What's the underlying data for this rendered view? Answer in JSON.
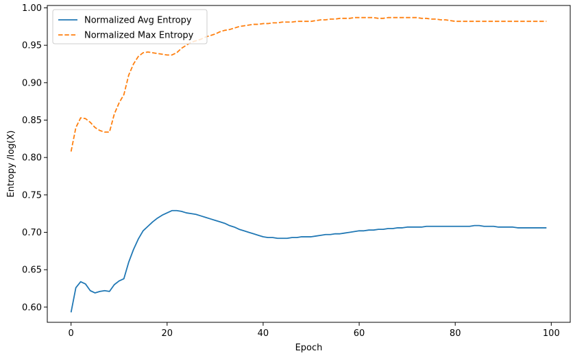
{
  "chart_data": {
    "type": "line",
    "title": "",
    "xlabel": "Epoch",
    "ylabel": "Entropy /log(X)",
    "xlim": [
      -4.95,
      103.95
    ],
    "ylim": [
      0.5797,
      1.0032
    ],
    "xticks": [
      0,
      20,
      40,
      60,
      80,
      100
    ],
    "yticks": [
      0.6,
      0.65,
      0.7,
      0.75,
      0.8,
      0.85,
      0.9,
      0.95,
      1.0
    ],
    "xtick_labels": [
      "0",
      "20",
      "40",
      "60",
      "80",
      "100"
    ],
    "ytick_labels": [
      "0.60",
      "0.65",
      "0.70",
      "0.75",
      "0.80",
      "0.85",
      "0.90",
      "0.95",
      "1.00"
    ],
    "grid": false,
    "legend_position": "upper-left",
    "series": [
      {
        "name": "Normalized Avg Entropy",
        "color": "#1f77b4",
        "dash": "solid",
        "x": [
          0,
          1,
          2,
          3,
          4,
          5,
          6,
          7,
          8,
          9,
          10,
          11,
          12,
          13,
          14,
          15,
          16,
          17,
          18,
          19,
          20,
          21,
          22,
          23,
          24,
          25,
          26,
          27,
          28,
          29,
          30,
          31,
          32,
          33,
          34,
          35,
          36,
          37,
          38,
          39,
          40,
          41,
          42,
          43,
          44,
          45,
          46,
          47,
          48,
          49,
          50,
          51,
          52,
          53,
          54,
          55,
          56,
          57,
          58,
          59,
          60,
          61,
          62,
          63,
          64,
          65,
          66,
          67,
          68,
          69,
          70,
          71,
          72,
          73,
          74,
          75,
          76,
          77,
          78,
          79,
          80,
          81,
          82,
          83,
          84,
          85,
          86,
          87,
          88,
          89,
          90,
          91,
          92,
          93,
          94,
          95,
          96,
          97,
          98,
          99
        ],
        "y": [
          0.593,
          0.626,
          0.634,
          0.631,
          0.622,
          0.619,
          0.621,
          0.622,
          0.621,
          0.63,
          0.635,
          0.638,
          0.66,
          0.677,
          0.691,
          0.702,
          0.708,
          0.714,
          0.719,
          0.723,
          0.726,
          0.729,
          0.729,
          0.728,
          0.726,
          0.725,
          0.724,
          0.722,
          0.72,
          0.718,
          0.716,
          0.714,
          0.712,
          0.709,
          0.707,
          0.704,
          0.702,
          0.7,
          0.698,
          0.696,
          0.694,
          0.693,
          0.693,
          0.692,
          0.692,
          0.692,
          0.693,
          0.693,
          0.694,
          0.694,
          0.694,
          0.695,
          0.696,
          0.697,
          0.697,
          0.698,
          0.698,
          0.699,
          0.7,
          0.701,
          0.702,
          0.702,
          0.703,
          0.703,
          0.704,
          0.704,
          0.705,
          0.705,
          0.706,
          0.706,
          0.707,
          0.707,
          0.707,
          0.707,
          0.708,
          0.708,
          0.708,
          0.708,
          0.708,
          0.708,
          0.708,
          0.708,
          0.708,
          0.708,
          0.709,
          0.709,
          0.708,
          0.708,
          0.708,
          0.707,
          0.707,
          0.707,
          0.707,
          0.706,
          0.706,
          0.706,
          0.706,
          0.706,
          0.706,
          0.706
        ]
      },
      {
        "name": "Normalized Max Entropy",
        "color": "#ff7f0e",
        "dash": "dashed",
        "x": [
          0,
          1,
          2,
          3,
          4,
          5,
          6,
          7,
          8,
          9,
          10,
          11,
          12,
          13,
          14,
          15,
          16,
          17,
          18,
          19,
          20,
          21,
          22,
          23,
          24,
          25,
          26,
          27,
          28,
          29,
          30,
          31,
          32,
          33,
          34,
          35,
          36,
          37,
          38,
          39,
          40,
          41,
          42,
          43,
          44,
          45,
          46,
          47,
          48,
          49,
          50,
          51,
          52,
          53,
          54,
          55,
          56,
          57,
          58,
          59,
          60,
          61,
          62,
          63,
          64,
          65,
          66,
          67,
          68,
          69,
          70,
          71,
          72,
          73,
          74,
          75,
          76,
          77,
          78,
          79,
          80,
          81,
          82,
          83,
          84,
          85,
          86,
          87,
          88,
          89,
          90,
          91,
          92,
          93,
          94,
          95,
          96,
          97,
          98,
          99
        ],
        "y": [
          0.808,
          0.84,
          0.853,
          0.852,
          0.847,
          0.84,
          0.836,
          0.834,
          0.834,
          0.858,
          0.873,
          0.884,
          0.91,
          0.925,
          0.935,
          0.94,
          0.941,
          0.94,
          0.939,
          0.938,
          0.937,
          0.937,
          0.94,
          0.946,
          0.95,
          0.954,
          0.956,
          0.958,
          0.961,
          0.963,
          0.965,
          0.968,
          0.97,
          0.971,
          0.973,
          0.975,
          0.976,
          0.977,
          0.978,
          0.978,
          0.979,
          0.979,
          0.98,
          0.98,
          0.981,
          0.981,
          0.981,
          0.982,
          0.982,
          0.982,
          0.982,
          0.983,
          0.984,
          0.984,
          0.985,
          0.985,
          0.986,
          0.986,
          0.986,
          0.987,
          0.987,
          0.987,
          0.987,
          0.987,
          0.986,
          0.986,
          0.987,
          0.987,
          0.987,
          0.987,
          0.987,
          0.987,
          0.987,
          0.986,
          0.986,
          0.985,
          0.985,
          0.984,
          0.984,
          0.983,
          0.982,
          0.982,
          0.982,
          0.982,
          0.982,
          0.982,
          0.982,
          0.982,
          0.982,
          0.982,
          0.982,
          0.982,
          0.982,
          0.982,
          0.982,
          0.982,
          0.982,
          0.982,
          0.982,
          0.982
        ]
      }
    ]
  }
}
